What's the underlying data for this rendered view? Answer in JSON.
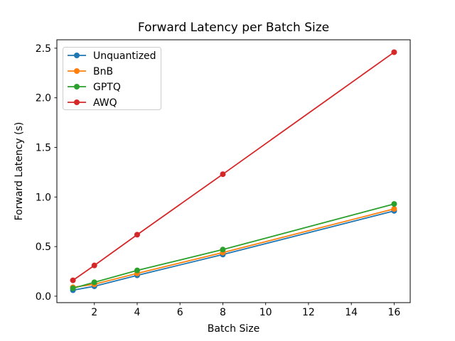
{
  "figure": {
    "background": "#ffffff",
    "spine_color": "#000000",
    "text_color": "#000000"
  },
  "chart_data": {
    "type": "line",
    "title": "Forward Latency per Batch Size",
    "xlabel": "Batch Size",
    "ylabel": "Forward Latency (s)",
    "x": [
      1,
      2,
      4,
      8,
      16
    ],
    "series": [
      {
        "name": "Unquantized",
        "color": "#1f77b4",
        "values": [
          0.06,
          0.1,
          0.21,
          0.42,
          0.86
        ]
      },
      {
        "name": "BnB",
        "color": "#ff7f0e",
        "values": [
          0.09,
          0.12,
          0.23,
          0.44,
          0.88
        ]
      },
      {
        "name": "GPTQ",
        "color": "#2ca02c",
        "values": [
          0.08,
          0.14,
          0.26,
          0.47,
          0.93
        ]
      },
      {
        "name": "AWQ",
        "color": "#d62728",
        "values": [
          0.16,
          0.31,
          0.62,
          1.23,
          2.46
        ]
      }
    ],
    "xticks": [
      2,
      4,
      6,
      8,
      10,
      12,
      14,
      16
    ],
    "xtick_labels": [
      "2",
      "4",
      "6",
      "8",
      "10",
      "12",
      "14",
      "16"
    ],
    "yticks": [
      0.0,
      0.5,
      1.0,
      1.5,
      2.0,
      2.5
    ],
    "ytick_labels": [
      "0.0",
      "0.5",
      "1.0",
      "1.5",
      "2.0",
      "2.5"
    ],
    "xlim": [
      0.25,
      16.75
    ],
    "ylim": [
      -0.065,
      2.585
    ],
    "grid": false,
    "marker": "o",
    "legend_position": "upper left",
    "legend": [
      "Unquantized",
      "BnB",
      "GPTQ",
      "AWQ"
    ]
  }
}
